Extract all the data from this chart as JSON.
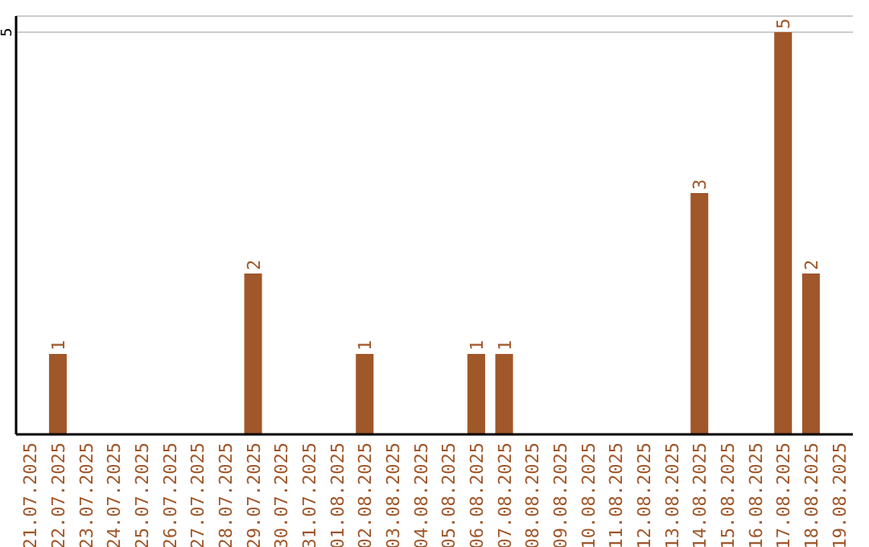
{
  "chart_data": {
    "type": "bar",
    "categories": [
      "21.07.2025",
      "22.07.2025",
      "23.07.2025",
      "24.07.2025",
      "25.07.2025",
      "26.07.2025",
      "27.07.2025",
      "28.07.2025",
      "29.07.2025",
      "30.07.2025",
      "31.07.2025",
      "01.08.2025",
      "02.08.2025",
      "03.08.2025",
      "04.08.2025",
      "05.08.2025",
      "06.08.2025",
      "07.08.2025",
      "08.08.2025",
      "09.08.2025",
      "10.08.2025",
      "11.08.2025",
      "12.08.2025",
      "13.08.2025",
      "14.08.2025",
      "15.08.2025",
      "16.08.2025",
      "17.08.2025",
      "18.08.2025",
      "19.08.2025"
    ],
    "values": [
      0,
      1,
      0,
      0,
      0,
      0,
      0,
      0,
      2,
      0,
      0,
      0,
      1,
      0,
      0,
      0,
      1,
      1,
      0,
      0,
      0,
      0,
      0,
      0,
      3,
      0,
      0,
      5,
      2,
      0
    ],
    "value_labels": [
      null,
      "1",
      null,
      null,
      null,
      null,
      null,
      null,
      "2",
      null,
      null,
      null,
      "1",
      null,
      null,
      null,
      "1",
      "1",
      null,
      null,
      null,
      null,
      null,
      null,
      "3",
      null,
      null,
      "5",
      "2",
      null
    ],
    "color": "#a0572a",
    "ylim": [
      0,
      5.2
    ],
    "yticks": [
      5
    ],
    "grid": "y"
  }
}
